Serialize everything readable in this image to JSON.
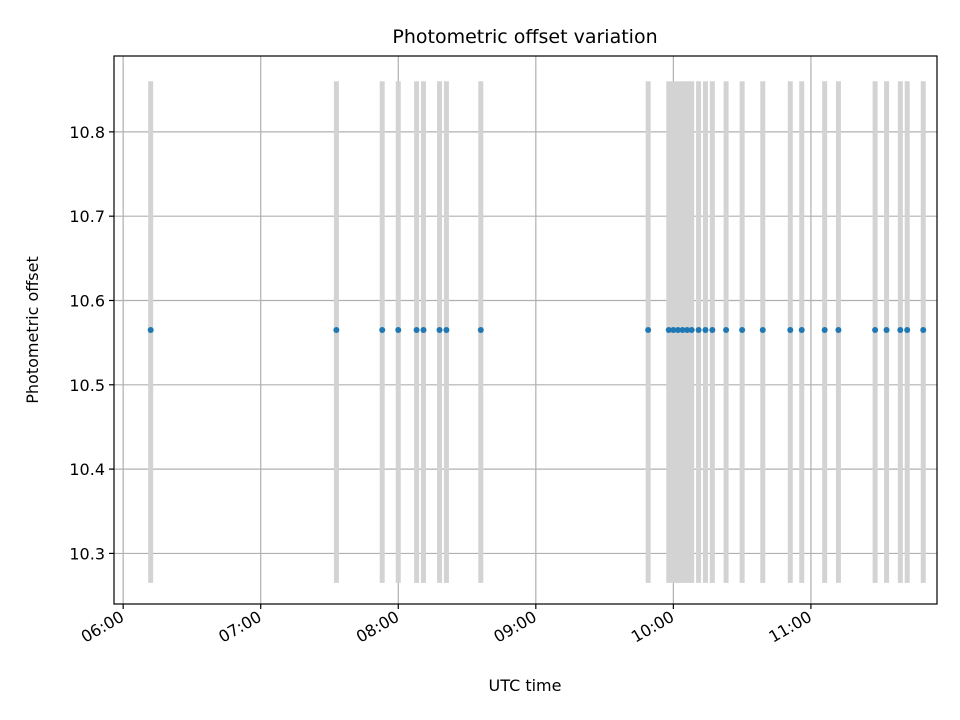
{
  "chart_data": {
    "type": "scatter",
    "title": "Photometric offset variation",
    "xlabel": "UTC time",
    "ylabel": "Photometric offset",
    "x_ticks": [
      "06:00",
      "07:00",
      "08:00",
      "09:00",
      "10:00",
      "11:00"
    ],
    "y_ticks": [
      "10.3",
      "10.4",
      "10.5",
      "10.6",
      "10.7",
      "10.8"
    ],
    "xlim": [
      "05:56",
      "11:55"
    ],
    "ylim": [
      10.24,
      10.89
    ],
    "grid": true,
    "point_color": "#1f77b4",
    "error_bar_color": "#d3d3d3",
    "error_range": [
      10.265,
      10.86
    ],
    "y": 10.565,
    "x": [
      "06:12",
      "07:33",
      "07:53",
      "08:00",
      "08:08",
      "08:11",
      "08:18",
      "08:21",
      "08:36",
      "09:49",
      "09:58",
      "10:00",
      "10:02",
      "10:04",
      "10:06",
      "10:08",
      "10:11",
      "10:14",
      "10:17",
      "10:23",
      "10:30",
      "10:39",
      "10:51",
      "10:56",
      "11:06",
      "11:12",
      "11:28",
      "11:33",
      "11:39",
      "11:42",
      "11:49"
    ]
  }
}
